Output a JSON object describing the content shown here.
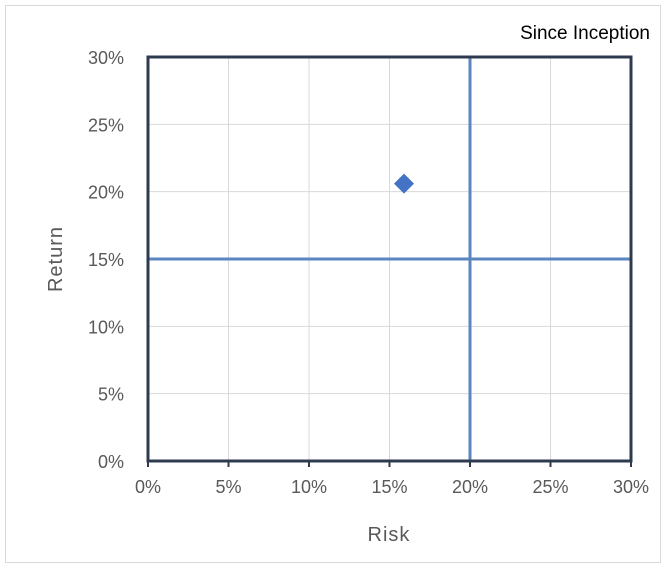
{
  "chart_data": {
    "type": "scatter",
    "title": "Since Inception",
    "xlabel": "Risk",
    "ylabel": "Return",
    "xlim": [
      0,
      30
    ],
    "ylim": [
      0,
      30
    ],
    "x_ticks": [
      "0%",
      "5%",
      "10%",
      "15%",
      "20%",
      "25%",
      "30%"
    ],
    "y_ticks": [
      "0%",
      "5%",
      "10%",
      "15%",
      "20%",
      "25%",
      "30%"
    ],
    "grid": true,
    "reference_lines": {
      "x": 20,
      "y": 15,
      "color": "#5b86c0"
    },
    "series": [
      {
        "marker": "diamond",
        "color": "#4472c4",
        "points": [
          {
            "x": 15.9,
            "y": 20.6
          }
        ]
      }
    ],
    "colors": {
      "plot_border": "#2e3b4e",
      "grid": "#d9d9d9",
      "text": "#595959"
    }
  }
}
